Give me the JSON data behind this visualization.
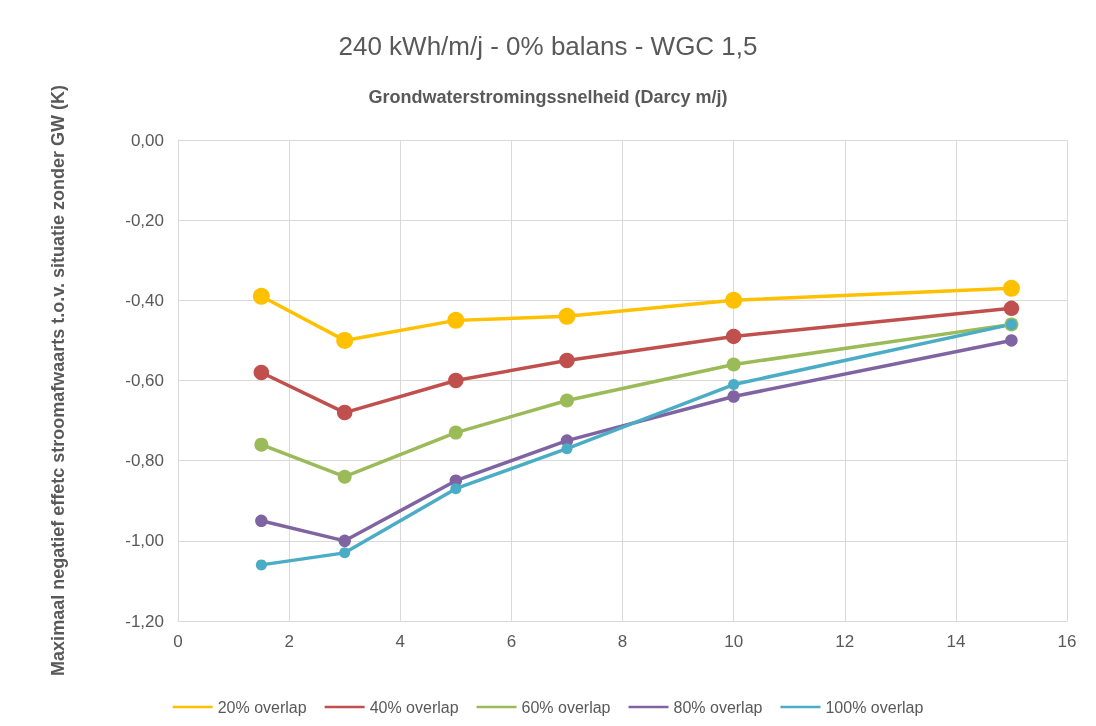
{
  "chart_data": {
    "type": "line",
    "title": "240 kWh/m/j - 0% balans - WGC 1,5",
    "xlabel": "Grondwaterstromingssnelheid (Darcy m/j)",
    "ylabel": "Maximaal negatief effetc stroomafwaarts t.o.v. situatie zonder GW (K)",
    "x": [
      1.5,
      3,
      5,
      7,
      10,
      15
    ],
    "series": [
      {
        "name": "20% overlap",
        "color": "#ffc000",
        "values": [
          -0.39,
          -0.5,
          -0.45,
          -0.44,
          -0.4,
          -0.37
        ]
      },
      {
        "name": "40% overlap",
        "color": "#c0504d",
        "values": [
          -0.58,
          -0.68,
          -0.6,
          -0.55,
          -0.49,
          -0.42
        ]
      },
      {
        "name": "60% overlap",
        "color": "#9bbb59",
        "values": [
          -0.76,
          -0.84,
          -0.73,
          -0.65,
          -0.56,
          -0.46
        ]
      },
      {
        "name": "80% overlap",
        "color": "#8064a2",
        "values": [
          -0.95,
          -1.0,
          -0.85,
          -0.75,
          -0.64,
          -0.5
        ]
      },
      {
        "name": "100% overlap",
        "color": "#4bacc6",
        "values": [
          -1.06,
          -1.03,
          -0.87,
          -0.77,
          -0.61,
          -0.46
        ]
      }
    ],
    "xlim": [
      0,
      16
    ],
    "xticks": [
      0,
      2,
      4,
      6,
      8,
      10,
      12,
      14,
      16
    ],
    "ylim": [
      -1.2,
      0
    ],
    "yticks": [
      {
        "value": -1.2,
        "label": "-1,20"
      },
      {
        "value": -1.0,
        "label": "-1,00"
      },
      {
        "value": -0.8,
        "label": "-0,80"
      },
      {
        "value": -0.6,
        "label": "-0,60"
      },
      {
        "value": -0.4,
        "label": "-0,40"
      },
      {
        "value": -0.2,
        "label": "-0,20"
      },
      {
        "value": 0,
        "label": "0,00"
      }
    ],
    "grid": true,
    "legend": "bottom",
    "marker": "circle",
    "line_style": "solid"
  }
}
